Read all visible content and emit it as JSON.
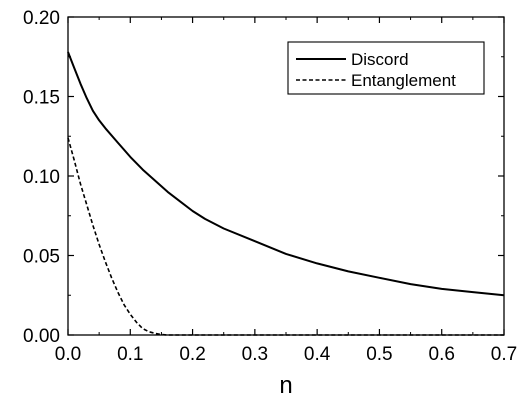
{
  "chart_data": {
    "type": "line",
    "title": "",
    "xlabel": "n",
    "ylabel": "",
    "xlim": [
      0.0,
      0.7
    ],
    "ylim": [
      0.0,
      0.2
    ],
    "x_ticks": [
      "0.0",
      "0.1",
      "0.2",
      "0.3",
      "0.4",
      "0.5",
      "0.6",
      "0.7"
    ],
    "y_ticks": [
      "0.00",
      "0.05",
      "0.10",
      "0.15",
      "0.20"
    ],
    "grid": false,
    "legend_position": "top-right",
    "series": [
      {
        "name": "Discord",
        "style": "solid",
        "color": "#000000",
        "x": [
          0.0,
          0.01,
          0.02,
          0.03,
          0.04,
          0.05,
          0.06,
          0.08,
          0.1,
          0.12,
          0.14,
          0.16,
          0.18,
          0.2,
          0.22,
          0.25,
          0.3,
          0.35,
          0.4,
          0.45,
          0.5,
          0.55,
          0.6,
          0.65,
          0.7
        ],
        "y": [
          0.178,
          0.168,
          0.158,
          0.149,
          0.141,
          0.135,
          0.13,
          0.121,
          0.112,
          0.104,
          0.097,
          0.09,
          0.084,
          0.078,
          0.073,
          0.067,
          0.059,
          0.051,
          0.045,
          0.04,
          0.036,
          0.032,
          0.029,
          0.027,
          0.025
        ]
      },
      {
        "name": "Entanglement",
        "style": "dashed",
        "color": "#000000",
        "x": [
          0.0,
          0.01,
          0.02,
          0.03,
          0.04,
          0.05,
          0.06,
          0.07,
          0.08,
          0.09,
          0.1,
          0.11,
          0.12,
          0.13,
          0.14,
          0.15,
          0.16,
          0.2,
          0.3,
          0.4,
          0.5,
          0.6,
          0.7
        ],
        "y": [
          0.124,
          0.11,
          0.095,
          0.082,
          0.069,
          0.057,
          0.046,
          0.036,
          0.027,
          0.019,
          0.013,
          0.008,
          0.004,
          0.002,
          0.001,
          0.0003,
          0.0,
          0.0,
          0.0,
          0.0,
          0.0,
          0.0,
          0.0
        ]
      }
    ]
  }
}
